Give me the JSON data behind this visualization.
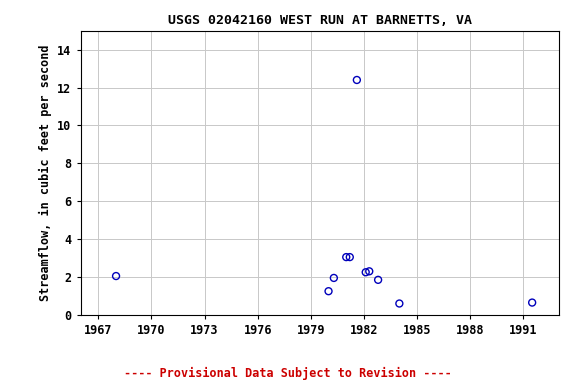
{
  "title": "USGS 02042160 WEST RUN AT BARNETTS, VA",
  "ylabel": "Streamflow, in cubic feet per second",
  "xlim": [
    1966.0,
    1993.0
  ],
  "ylim": [
    0,
    15
  ],
  "xticks": [
    1967,
    1970,
    1973,
    1976,
    1979,
    1982,
    1985,
    1988,
    1991
  ],
  "yticks": [
    0,
    2,
    4,
    6,
    8,
    10,
    12,
    14
  ],
  "x_data": [
    1968.0,
    1980.0,
    1980.3,
    1981.0,
    1981.2,
    1981.6,
    1982.1,
    1982.3,
    1982.8,
    1984.0,
    1991.5
  ],
  "y_data": [
    2.05,
    1.25,
    1.95,
    3.05,
    3.05,
    12.4,
    2.25,
    2.3,
    1.85,
    0.6,
    0.65
  ],
  "point_color": "#0000bb",
  "point_size": 25,
  "point_linewidth": 1.0,
  "grid_color": "#c8c8c8",
  "bg_color": "#ffffff",
  "footnote": "---- Provisional Data Subject to Revision ----",
  "footnote_color": "#cc0000",
  "title_fontsize": 9.5,
  "label_fontsize": 8.5,
  "tick_fontsize": 8.5,
  "footnote_fontsize": 8.5
}
